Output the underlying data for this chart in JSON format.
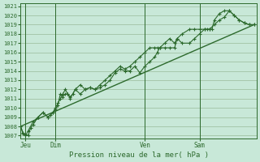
{
  "title": "Pression niveau de la mer( hPa )",
  "bg_color": "#c8e8d8",
  "grid_color": "#99bb99",
  "line_color": "#2d6a2d",
  "ylim_min": 1007,
  "ylim_max": 1021,
  "yticks": [
    1007,
    1008,
    1009,
    1010,
    1011,
    1012,
    1013,
    1014,
    1015,
    1016,
    1017,
    1018,
    1019,
    1020,
    1021
  ],
  "xtick_labels": [
    "Jeu",
    "Dim",
    "Ven",
    "Sam"
  ],
  "xtick_pos": [
    2,
    14,
    50,
    72
  ],
  "vline_pos": [
    2,
    14,
    50,
    72
  ],
  "xlim": [
    0,
    95
  ],
  "series1_x": [
    0,
    1,
    2,
    3,
    4,
    5,
    7,
    9,
    11,
    12,
    13,
    14,
    15,
    16,
    17,
    18,
    19,
    20,
    21,
    22,
    24,
    26,
    28,
    30,
    32,
    34,
    36,
    38,
    40,
    42,
    44,
    46,
    48,
    50,
    52,
    54,
    55,
    56,
    58,
    60,
    62,
    63,
    65,
    68,
    70,
    72,
    74,
    75,
    76,
    77,
    78,
    80,
    82,
    84,
    86,
    88,
    90,
    92,
    94
  ],
  "series1_y": [
    1008.0,
    1007.3,
    1007.1,
    1007.0,
    1007.8,
    1008.2,
    1009.0,
    1009.5,
    1009.0,
    1009.2,
    1009.5,
    1009.8,
    1010.3,
    1011.5,
    1011.2,
    1011.5,
    1011.5,
    1011.2,
    1011.5,
    1012.0,
    1011.5,
    1012.0,
    1012.2,
    1012.0,
    1012.2,
    1012.5,
    1013.0,
    1013.8,
    1014.2,
    1014.0,
    1014.0,
    1014.5,
    1013.8,
    1014.5,
    1015.0,
    1015.5,
    1016.0,
    1016.5,
    1016.5,
    1016.5,
    1016.5,
    1017.5,
    1017.0,
    1017.0,
    1017.5,
    1018.0,
    1018.5,
    1018.5,
    1018.5,
    1018.5,
    1019.5,
    1020.2,
    1020.5,
    1020.5,
    1020.0,
    1019.5,
    1019.2,
    1019.0,
    1019.0
  ],
  "series2_x": [
    0,
    1,
    2,
    3,
    5,
    7,
    9,
    11,
    13,
    14,
    15,
    16,
    17,
    18,
    19,
    20,
    22,
    24,
    26,
    28,
    30,
    32,
    34,
    36,
    38,
    40,
    42,
    44,
    46,
    48,
    50,
    52,
    54,
    55,
    56,
    58,
    60,
    62,
    63,
    65,
    68,
    70,
    72,
    74,
    76,
    78,
    80,
    82,
    84,
    86,
    88,
    90,
    92,
    94
  ],
  "series2_y": [
    1008.0,
    1007.2,
    1007.0,
    1007.5,
    1008.5,
    1009.0,
    1009.5,
    1009.0,
    1009.5,
    1010.0,
    1010.5,
    1011.0,
    1011.5,
    1012.0,
    1011.5,
    1011.0,
    1012.0,
    1012.5,
    1012.0,
    1012.2,
    1012.0,
    1012.5,
    1013.0,
    1013.5,
    1014.0,
    1014.5,
    1014.2,
    1014.5,
    1015.0,
    1015.5,
    1016.0,
    1016.5,
    1016.5,
    1016.5,
    1016.5,
    1017.0,
    1017.5,
    1017.0,
    1017.5,
    1018.0,
    1018.5,
    1018.5,
    1018.5,
    1018.5,
    1018.5,
    1019.0,
    1019.5,
    1019.8,
    1020.5,
    1020.0,
    1019.5,
    1019.2,
    1019.0,
    1019.0
  ],
  "trend_x": [
    0,
    94
  ],
  "trend_y": [
    1008.0,
    1019.0
  ]
}
